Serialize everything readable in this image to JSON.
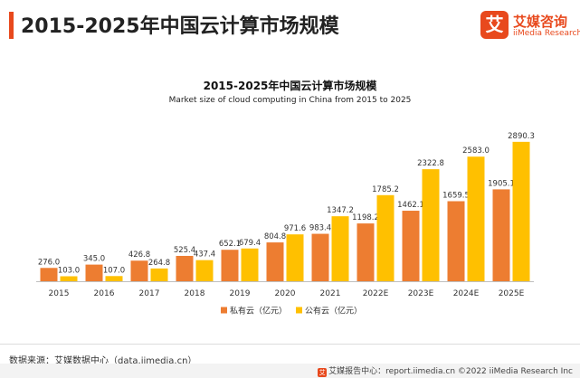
{
  "header": {
    "title": "2015-2025年中国云计算市场规模",
    "logo_mark": "艾",
    "logo_cn": "艾媒咨询",
    "logo_en": "iiMedia Research"
  },
  "chart_data": {
    "type": "bar",
    "title": "2015-2025年中国云计算市场规模",
    "subtitle": "Market size of cloud computing in China from 2015 to 2025",
    "categories": [
      "2015",
      "2016",
      "2017",
      "2018",
      "2019",
      "2020",
      "2021",
      "2022E",
      "2023E",
      "2024E",
      "2025E"
    ],
    "series": [
      {
        "name": "私有云（亿元）",
        "color": "#ed7d31",
        "values": [
          276.0,
          345.0,
          426.8,
          525.4,
          652.1,
          804.8,
          983.4,
          1198.2,
          1462.1,
          1659.5,
          1905.1
        ],
        "labels": [
          "276.0",
          "345.0",
          "426.8",
          "525.4",
          "652.1",
          "804.8",
          "983.4",
          "1198.2",
          "1462.1",
          "1659.5",
          "1905.1"
        ]
      },
      {
        "name": "公有云（亿元）",
        "color": "#ffc000",
        "values": [
          103.0,
          107.0,
          264.8,
          437.4,
          679.4,
          971.6,
          1347.2,
          1785.2,
          2322.8,
          2583.0,
          2890.3
        ],
        "labels": [
          "103.0",
          "107.0",
          "264.8",
          "437.4",
          "679.4",
          "971.6",
          "1347.2",
          "1785.2",
          "2322.8",
          "2583.0",
          "2890.3"
        ]
      }
    ],
    "ylim": [
      0,
      3000
    ],
    "grid": false,
    "legend": "bottom"
  },
  "footer": {
    "source": "数据来源：艾媒数据中心（data.iimedia.cn）",
    "icon": "艾",
    "right": "艾媒报告中心：report.iimedia.cn   ©2022 iiMedia Research Inc"
  }
}
